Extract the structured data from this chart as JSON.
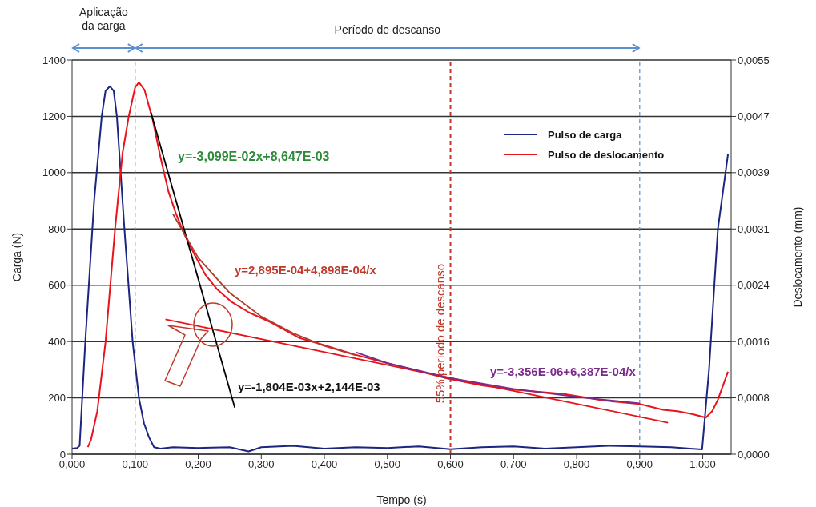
{
  "chart_data": {
    "type": "line",
    "xlabel": "Tempo (s)",
    "ylabel": "Carga (N)",
    "y2label": "Deslocamento (mm)",
    "xlim": [
      0,
      1.045
    ],
    "xticks": [
      {
        "value": 0,
        "label": "0,000"
      },
      {
        "value": 0.1,
        "label": "0,100"
      },
      {
        "value": 0.2,
        "label": "0,200"
      },
      {
        "value": 0.3,
        "label": "0,300"
      },
      {
        "value": 0.4,
        "label": "0,400"
      },
      {
        "value": 0.5,
        "label": "0,500"
      },
      {
        "value": 0.6,
        "label": "0,600"
      },
      {
        "value": 0.7,
        "label": "0,700"
      },
      {
        "value": 0.8,
        "label": "0,800"
      },
      {
        "value": 0.9,
        "label": "0,900"
      },
      {
        "value": 1,
        "label": "1,000"
      }
    ],
    "ylim": [
      0,
      1400
    ],
    "yticks": [
      0,
      200,
      400,
      600,
      800,
      1000,
      1200,
      1400
    ],
    "y2lim": [
      0,
      0.0055
    ],
    "y2ticks": [
      {
        "value": 0,
        "label": "0,0000"
      },
      {
        "value": 0.000786,
        "label": "0,0008"
      },
      {
        "value": 0.001571,
        "label": "0,0016"
      },
      {
        "value": 0.002357,
        "label": "0,0024"
      },
      {
        "value": 0.003143,
        "label": "0,0031"
      },
      {
        "value": 0.003929,
        "label": "0,0039"
      },
      {
        "value": 0.004714,
        "label": "0,0047"
      },
      {
        "value": 0.0055,
        "label": "0,0055"
      }
    ],
    "grid": "y",
    "legend": "top right",
    "series": [
      {
        "name": "Pulso de carga",
        "color": "#1c2580",
        "x": [
          0,
          0.008,
          0.012,
          0.021,
          0.035,
          0.047,
          0.053,
          0.06,
          0.066,
          0.071,
          0.083,
          0.096,
          0.106,
          0.114,
          0.122,
          0.13,
          0.14,
          0.16,
          0.2,
          0.25,
          0.28,
          0.3,
          0.35,
          0.4,
          0.45,
          0.5,
          0.55,
          0.6,
          0.65,
          0.7,
          0.75,
          0.8,
          0.85,
          0.9,
          0.95,
          0.98,
          0.999,
          1.01,
          1.024,
          1.04
        ],
        "values": [
          20,
          22,
          30,
          400,
          900,
          1200,
          1290,
          1307,
          1290,
          1200,
          800,
          400,
          200,
          110,
          60,
          25,
          20,
          25,
          22,
          25,
          10,
          25,
          30,
          20,
          25,
          22,
          28,
          18,
          25,
          28,
          20,
          25,
          30,
          28,
          25,
          20,
          17,
          300,
          800,
          1065
        ]
      },
      {
        "name": "Pulso de deslocamento",
        "color": "#e8141b",
        "axis": "y2",
        "x": [
          0.025,
          0.03,
          0.04,
          0.053,
          0.068,
          0.08,
          0.09,
          0.1,
          0.106,
          0.115,
          0.128,
          0.14,
          0.153,
          0.165,
          0.178,
          0.195,
          0.211,
          0.23,
          0.252,
          0.28,
          0.315,
          0.361,
          0.4,
          0.448,
          0.5,
          0.55,
          0.593,
          0.65,
          0.7,
          0.78,
          0.842,
          0.9,
          0.937,
          0.96,
          0.983,
          1.005,
          1.015,
          1.024,
          1.04
        ],
        "values": [
          0.0001,
          0.0002,
          0.0006,
          0.00156,
          0.00313,
          0.0042,
          0.00472,
          0.00512,
          0.00519,
          0.00508,
          0.00466,
          0.00415,
          0.00366,
          0.00335,
          0.00307,
          0.00277,
          0.00251,
          0.0023,
          0.00213,
          0.00198,
          0.00184,
          0.00162,
          0.00152,
          0.00139,
          0.00127,
          0.00116,
          0.00106,
          0.00096,
          0.0009,
          0.00084,
          0.00075,
          0.0007,
          0.00062,
          0.0006,
          0.00056,
          0.00051,
          0.0006,
          0.00076,
          0.00115
        ]
      },
      {
        "color": "#000000",
        "axis": "y2",
        "x": [
          0.125,
          0.258
        ],
        "values": [
          0.00477,
          0.00065
        ]
      },
      {
        "color": "#e8141b",
        "axis": "y2",
        "x": [
          0.148,
          0.945
        ],
        "values": [
          0.00188,
          0.00044
        ]
      },
      {
        "color": "#b03a2e",
        "axis": "y2",
        "x": [
          0.16,
          0.2,
          0.25,
          0.3,
          0.35,
          0.4,
          0.45
        ],
        "values": [
          0.00335,
          0.00274,
          0.00225,
          0.00192,
          0.00169,
          0.00151,
          0.00138
        ]
      },
      {
        "color": "#7b2a8b",
        "axis": "y2",
        "x": [
          0.45,
          0.5,
          0.6,
          0.7,
          0.8,
          0.9
        ],
        "values": [
          0.00142,
          0.00127,
          0.00106,
          0.00091,
          0.0008,
          0.00071
        ]
      }
    ],
    "ref_lines": [
      {
        "axis": "x",
        "value": 0.1,
        "color": "#5b8fd0",
        "line_style": "dashed"
      },
      {
        "axis": "x",
        "value": 0.9,
        "color": "#5b8fd0",
        "line_style": "dashed"
      },
      {
        "axis": "x",
        "value": 0.6,
        "label": "55% período de descanso",
        "color": "#c0392b",
        "line_style": "dashed"
      }
    ],
    "annotations": [
      "Aplicação da carga",
      "Período de descanso",
      "y=-3,099E-02x+8,647E-03",
      "y=2,895E-04+4,898E-04/x",
      "y=-1,804E-03x+2,144E-03",
      "y=-3,356E-06+6,387E-04/x"
    ]
  }
}
